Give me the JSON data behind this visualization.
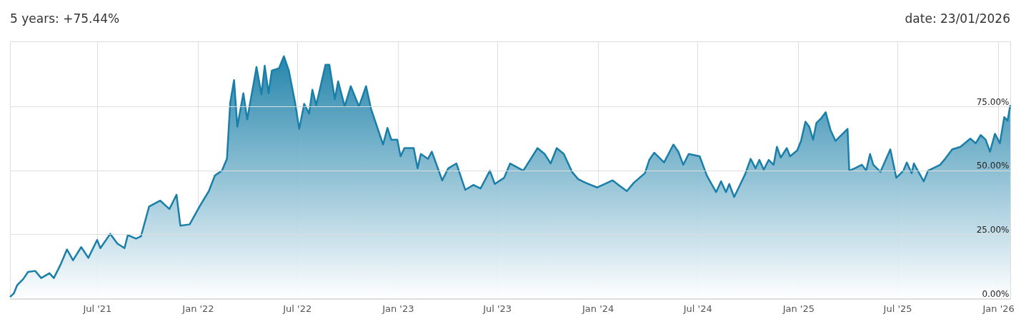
{
  "chart_data": {
    "type": "area",
    "title": "5 years: +75.44%",
    "annotations": [
      "date: 23/01/2026"
    ],
    "x": [
      "2021-01-23",
      "2021-01-30",
      "2021-02-05",
      "2021-02-16",
      "2021-02-25",
      "2021-03-10",
      "2021-03-21",
      "2021-04-05",
      "2021-04-13",
      "2021-04-26",
      "2021-05-07",
      "2021-05-18",
      "2021-06-02",
      "2021-06-15",
      "2021-07-01",
      "2021-07-07",
      "2021-07-25",
      "2021-08-07",
      "2021-08-20",
      "2021-08-26",
      "2021-09-10",
      "2021-09-19",
      "2021-10-04",
      "2021-10-24",
      "2021-11-10",
      "2021-11-23",
      "2021-11-30",
      "2021-12-17",
      "2022-01-04",
      "2022-01-21",
      "2022-02-01",
      "2022-02-14",
      "2022-02-23",
      "2022-03-01",
      "2022-03-08",
      "2022-03-14",
      "2022-03-25",
      "2022-04-01",
      "2022-04-18",
      "2022-04-27",
      "2022-05-03",
      "2022-05-10",
      "2022-05-16",
      "2022-05-29",
      "2022-06-07",
      "2022-06-16",
      "2022-06-27",
      "2022-07-05",
      "2022-07-14",
      "2022-07-23",
      "2022-07-29",
      "2022-08-05",
      "2022-08-22",
      "2022-08-29",
      "2022-09-08",
      "2022-09-14",
      "2022-09-26",
      "2022-10-07",
      "2022-10-22",
      "2022-11-04",
      "2022-11-13",
      "2022-12-05",
      "2022-12-13",
      "2022-12-20",
      "2022-12-31",
      "2023-01-06",
      "2023-01-13",
      "2023-01-30",
      "2023-02-06",
      "2023-02-12",
      "2023-02-25",
      "2023-03-04",
      "2023-03-23",
      "2023-04-03",
      "2023-04-18",
      "2023-05-04",
      "2023-05-19",
      "2023-06-01",
      "2023-06-18",
      "2023-06-27",
      "2023-07-14",
      "2023-07-25",
      "2023-08-18",
      "2023-09-13",
      "2023-09-26",
      "2023-10-07",
      "2023-10-18",
      "2023-10-31",
      "2023-11-15",
      "2023-11-26",
      "2023-12-09",
      "2023-12-31",
      "2024-01-28",
      "2024-02-08",
      "2024-02-23",
      "2024-03-07",
      "2024-03-27",
      "2024-04-04",
      "2024-04-13",
      "2024-05-01",
      "2024-05-18",
      "2024-05-27",
      "2024-06-05",
      "2024-06-15",
      "2024-07-05",
      "2024-07-18",
      "2024-08-04",
      "2024-08-13",
      "2024-08-22",
      "2024-08-28",
      "2024-09-06",
      "2024-09-26",
      "2024-10-06",
      "2024-10-15",
      "2024-10-22",
      "2024-10-30",
      "2024-11-08",
      "2024-11-17",
      "2024-11-23",
      "2024-11-30",
      "2024-12-11",
      "2024-12-17",
      "2024-12-30",
      "2025-01-06",
      "2025-01-14",
      "2025-01-21",
      "2025-01-28",
      "2025-02-03",
      "2025-02-12",
      "2025-02-20",
      "2025-03-01",
      "2025-03-10",
      "2025-04-01",
      "2025-04-04",
      "2025-04-14",
      "2025-04-27",
      "2025-05-05",
      "2025-05-12",
      "2025-05-18",
      "2025-05-31",
      "2025-06-18",
      "2025-06-29",
      "2025-07-12",
      "2025-07-18",
      "2025-07-27",
      "2025-07-31",
      "2025-08-18",
      "2025-08-26",
      "2025-09-17",
      "2025-09-26",
      "2025-10-09",
      "2025-10-24",
      "2025-11-11",
      "2025-11-21",
      "2025-11-30",
      "2025-12-09",
      "2025-12-17",
      "2025-12-26",
      "2026-01-04",
      "2026-01-12",
      "2026-01-18",
      "2026-01-23"
    ],
    "series": [
      {
        "color": "#1a7fa8",
        "values": [
          0.5,
          1.9,
          5.1,
          7.5,
          10.3,
          10.7,
          7.9,
          9.8,
          7.9,
          13.5,
          19.1,
          14.9,
          20.0,
          15.8,
          22.8,
          19.6,
          25.2,
          21.4,
          19.6,
          24.7,
          23.3,
          24.2,
          35.9,
          38.2,
          34.9,
          40.5,
          28.4,
          28.9,
          35.9,
          41.9,
          48.0,
          49.9,
          54.5,
          76.4,
          85.3,
          67.1,
          80.1,
          69.9,
          90.4,
          79.7,
          90.9,
          80.1,
          89.0,
          89.9,
          94.6,
          89.0,
          76.9,
          66.2,
          76.0,
          72.2,
          81.5,
          75.5,
          91.3,
          91.3,
          77.8,
          84.8,
          75.0,
          82.9,
          75.0,
          82.9,
          74.1,
          60.1,
          66.6,
          62.0,
          62.0,
          55.5,
          58.7,
          58.7,
          50.8,
          56.4,
          54.5,
          57.3,
          46.1,
          50.8,
          52.7,
          42.4,
          44.3,
          42.9,
          49.9,
          44.7,
          47.1,
          52.7,
          49.9,
          58.7,
          56.4,
          52.7,
          58.7,
          56.4,
          49.4,
          46.6,
          45.2,
          43.3,
          46.1,
          44.3,
          41.9,
          45.2,
          48.9,
          54.1,
          56.9,
          53.1,
          60.1,
          57.3,
          52.2,
          56.4,
          55.5,
          48.0,
          41.5,
          45.7,
          41.5,
          44.7,
          39.6,
          48.5,
          54.5,
          50.8,
          54.1,
          50.3,
          54.1,
          52.2,
          59.2,
          55.0,
          58.7,
          55.5,
          57.8,
          61.5,
          69.0,
          67.1,
          62.0,
          68.5,
          70.4,
          72.7,
          65.7,
          61.5,
          66.2,
          49.9,
          50.8,
          52.2,
          49.9,
          56.4,
          52.2,
          49.4,
          58.2,
          47.1,
          49.9,
          53.1,
          48.9,
          52.7,
          45.7,
          49.9,
          52.2,
          54.5,
          58.2,
          59.2,
          62.4,
          60.6,
          63.8,
          62.0,
          57.3,
          64.3,
          60.6,
          70.8,
          69.4,
          75.44
        ]
      }
    ],
    "xlim": [
      "2021-01-23",
      "2026-01-23"
    ],
    "xticks": [
      {
        "value": "2021-07-01",
        "label": "Jul '21"
      },
      {
        "value": "2022-01-01",
        "label": "Jan '22"
      },
      {
        "value": "2022-07-01",
        "label": "Jul '22"
      },
      {
        "value": "2023-01-01",
        "label": "Jan '23"
      },
      {
        "value": "2023-07-01",
        "label": "Jul '23"
      },
      {
        "value": "2024-01-01",
        "label": "Jan '24"
      },
      {
        "value": "2024-07-01",
        "label": "Jul '24"
      },
      {
        "value": "2025-01-01",
        "label": "Jan '25"
      },
      {
        "value": "2025-07-01",
        "label": "Jul '25"
      },
      {
        "value": "2026-01-01",
        "label": "Jan '26"
      }
    ],
    "ylim": [
      0,
      100.4
    ],
    "yticks": [
      {
        "value": 0,
        "label": "0.00%"
      },
      {
        "value": 25,
        "label": "25.00%"
      },
      {
        "value": 50,
        "label": "50.00%"
      },
      {
        "value": 75,
        "label": "75.00%"
      }
    ],
    "grid": true,
    "line_style": "solid"
  }
}
